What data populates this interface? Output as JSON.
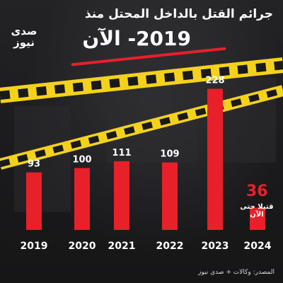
{
  "header": {
    "title_line1": "جرائم القتل بالداخل المحتل منذ",
    "title_line2": "2019- الآن"
  },
  "brand": {
    "logo_text": "صدى نيوز",
    "accent_color": "#e8202a",
    "tape_color": "#f4d21c"
  },
  "chart_data": {
    "type": "bar",
    "categories": [
      "2019",
      "2020",
      "2021",
      "2022",
      "2023",
      "2024"
    ],
    "values": [
      93,
      100,
      111,
      109,
      228,
      36
    ],
    "value_labels": [
      "93",
      "100",
      "111",
      "109",
      "228",
      "36"
    ],
    "highlight_note": "قتيلا حتى الآن",
    "ylim": [
      0,
      240
    ],
    "grid": false,
    "bar_color": "#e8202a"
  },
  "footer": {
    "source": "المصدر: وكالات + صدى نيوز"
  }
}
